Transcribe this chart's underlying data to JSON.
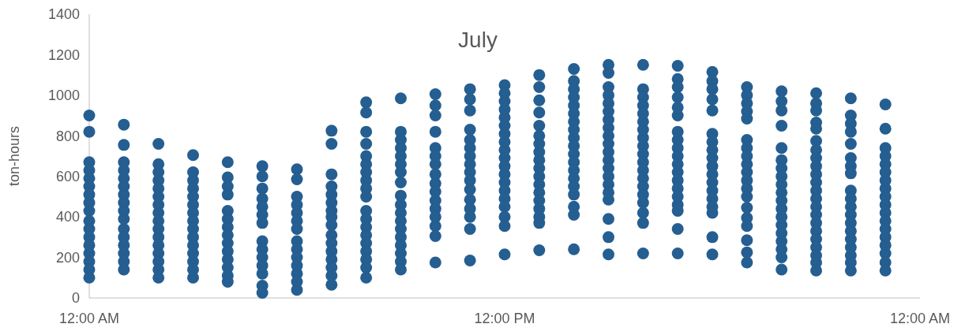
{
  "chart_data": {
    "type": "scatter",
    "title": "July",
    "ylabel": "ton-hours",
    "marker": "circle",
    "grid": false,
    "xlim": [
      0,
      24
    ],
    "xticks": [
      {
        "value": 0,
        "label": "12:00 AM"
      },
      {
        "value": 12,
        "label": "12:00 PM"
      },
      {
        "value": 24,
        "label": "12:00 AM"
      }
    ],
    "ylim": [
      0,
      1400
    ],
    "yticks": [
      0,
      200,
      400,
      600,
      800,
      1000,
      1200,
      1400
    ],
    "series": [
      {
        "color": "#255e91",
        "x": [
          0,
          0,
          0,
          0,
          0,
          0,
          0,
          0,
          0,
          0,
          0,
          0,
          0,
          0,
          0,
          0,
          0
        ],
        "values": [
          900,
          820,
          670,
          630,
          590,
          550,
          510,
          470,
          430,
          380,
          340,
          300,
          260,
          220,
          180,
          140,
          100
        ]
      },
      {
        "color": "#255e91",
        "x": [
          1,
          1,
          1,
          1,
          1,
          1,
          1,
          1,
          1,
          1,
          1,
          1,
          1,
          1,
          1,
          1
        ],
        "values": [
          855,
          755,
          670,
          630,
          590,
          550,
          510,
          470,
          430,
          390,
          340,
          300,
          260,
          220,
          180,
          140
        ]
      },
      {
        "color": "#255e91",
        "x": [
          2,
          2,
          2,
          2,
          2,
          2,
          2,
          2,
          2,
          2,
          2,
          2,
          2,
          2,
          2,
          2
        ],
        "values": [
          760,
          660,
          620,
          580,
          540,
          500,
          460,
          420,
          380,
          340,
          300,
          260,
          220,
          180,
          140,
          100
        ]
      },
      {
        "color": "#255e91",
        "x": [
          3,
          3,
          3,
          3,
          3,
          3,
          3,
          3,
          3,
          3,
          3,
          3,
          3,
          3,
          3
        ],
        "values": [
          705,
          620,
          580,
          540,
          500,
          460,
          420,
          380,
          340,
          300,
          260,
          220,
          180,
          140,
          100
        ]
      },
      {
        "color": "#255e91",
        "x": [
          4,
          4,
          4,
          4,
          4,
          4,
          4,
          4,
          4,
          4,
          4,
          4,
          4,
          4
        ],
        "values": [
          670,
          595,
          550,
          510,
          430,
          390,
          350,
          310,
          270,
          230,
          190,
          150,
          110,
          80
        ]
      },
      {
        "color": "#255e91",
        "x": [
          5,
          5,
          5,
          5,
          5,
          5,
          5,
          5,
          5,
          5,
          5,
          5,
          5,
          5
        ],
        "values": [
          650,
          600,
          540,
          490,
          450,
          410,
          370,
          280,
          240,
          200,
          160,
          120,
          60,
          25
        ]
      },
      {
        "color": "#255e91",
        "x": [
          6,
          6,
          6,
          6,
          6,
          6,
          6,
          6,
          6,
          6,
          6,
          6,
          6,
          6
        ],
        "values": [
          635,
          585,
          500,
          460,
          420,
          380,
          340,
          280,
          240,
          200,
          160,
          120,
          80,
          40
        ]
      },
      {
        "color": "#255e91",
        "x": [
          7,
          7,
          7,
          7,
          7,
          7,
          7,
          7,
          7,
          7,
          7,
          7,
          7,
          7,
          7,
          7
        ],
        "values": [
          825,
          760,
          610,
          550,
          510,
          470,
          430,
          400,
          360,
          310,
          270,
          230,
          190,
          150,
          110,
          65
        ]
      },
      {
        "color": "#255e91",
        "x": [
          8,
          8,
          8,
          8,
          8,
          8,
          8,
          8,
          8,
          8,
          8,
          8,
          8,
          8,
          8,
          8,
          8,
          8,
          8
        ],
        "values": [
          965,
          915,
          820,
          760,
          700,
          660,
          620,
          580,
          540,
          500,
          430,
          390,
          350,
          310,
          270,
          230,
          190,
          150,
          100
        ]
      },
      {
        "color": "#255e91",
        "x": [
          9,
          9,
          9,
          9,
          9,
          9,
          9,
          9,
          9,
          9,
          9,
          9,
          9,
          9,
          9,
          9,
          9,
          9
        ],
        "values": [
          985,
          820,
          780,
          740,
          700,
          660,
          620,
          570,
          505,
          460,
          420,
          380,
          340,
          300,
          260,
          220,
          180,
          140
        ]
      },
      {
        "color": "#255e91",
        "x": [
          10,
          10,
          10,
          10,
          10,
          10,
          10,
          10,
          10,
          10,
          10,
          10,
          10,
          10,
          10,
          10
        ],
        "values": [
          1005,
          950,
          900,
          820,
          740,
          700,
          660,
          610,
          565,
          525,
          480,
          440,
          400,
          355,
          305,
          175
        ]
      },
      {
        "color": "#255e91",
        "x": [
          11,
          11,
          11,
          11,
          11,
          11,
          11,
          11,
          11,
          11,
          11,
          11,
          11,
          11,
          11,
          11
        ],
        "values": [
          1030,
          980,
          925,
          830,
          780,
          740,
          700,
          660,
          620,
          580,
          535,
          485,
          440,
          400,
          340,
          185
        ]
      },
      {
        "color": "#255e91",
        "x": [
          12,
          12,
          12,
          12,
          12,
          12,
          12,
          12,
          12,
          12,
          12,
          12,
          12,
          12,
          12,
          12,
          12,
          12,
          12
        ],
        "values": [
          1050,
          1010,
          970,
          930,
          890,
          850,
          810,
          770,
          730,
          690,
          650,
          610,
          570,
          530,
          490,
          450,
          400,
          355,
          215
        ]
      },
      {
        "color": "#255e91",
        "x": [
          13,
          13,
          13,
          13,
          13,
          13,
          13,
          13,
          13,
          13,
          13,
          13,
          13,
          13,
          13,
          13,
          13,
          13
        ],
        "values": [
          1100,
          1040,
          975,
          915,
          850,
          800,
          760,
          720,
          680,
          640,
          600,
          560,
          520,
          480,
          440,
          400,
          370,
          235
        ]
      },
      {
        "color": "#255e91",
        "x": [
          14,
          14,
          14,
          14,
          14,
          14,
          14,
          14,
          14,
          14,
          14,
          14,
          14,
          14,
          14,
          14,
          14,
          14,
          14
        ],
        "values": [
          1130,
          1070,
          1030,
          990,
          950,
          910,
          870,
          830,
          790,
          750,
          710,
          670,
          630,
          590,
          550,
          510,
          450,
          410,
          240
        ]
      },
      {
        "color": "#255e91",
        "x": [
          15,
          15,
          15,
          15,
          15,
          15,
          15,
          15,
          15,
          15,
          15,
          15,
          15,
          15,
          15,
          15,
          15,
          15,
          15,
          15
        ],
        "values": [
          1150,
          1110,
          1040,
          1000,
          960,
          920,
          880,
          840,
          800,
          760,
          720,
          680,
          640,
          600,
          560,
          520,
          485,
          390,
          300,
          215
        ]
      },
      {
        "color": "#255e91",
        "x": [
          16,
          16,
          16,
          16,
          16,
          16,
          16,
          16,
          16,
          16,
          16,
          16,
          16,
          16,
          16,
          16,
          16,
          16,
          16
        ],
        "values": [
          1150,
          1030,
          990,
          950,
          910,
          870,
          830,
          790,
          750,
          710,
          670,
          630,
          590,
          550,
          510,
          470,
          420,
          370,
          220
        ]
      },
      {
        "color": "#255e91",
        "x": [
          17,
          17,
          17,
          17,
          17,
          17,
          17,
          17,
          17,
          17,
          17,
          17,
          17,
          17,
          17,
          17,
          17,
          17,
          17
        ],
        "values": [
          1145,
          1080,
          1040,
          990,
          940,
          900,
          820,
          780,
          740,
          700,
          660,
          620,
          580,
          540,
          500,
          460,
          430,
          340,
          220
        ]
      },
      {
        "color": "#255e91",
        "x": [
          18,
          18,
          18,
          18,
          18,
          18,
          18,
          18,
          18,
          18,
          18,
          18,
          18,
          18,
          18,
          18,
          18,
          18
        ],
        "values": [
          1115,
          1070,
          1030,
          980,
          925,
          810,
          770,
          730,
          690,
          650,
          610,
          570,
          530,
          490,
          450,
          420,
          300,
          215
        ]
      },
      {
        "color": "#255e91",
        "x": [
          19,
          19,
          19,
          19,
          19,
          19,
          19,
          19,
          19,
          19,
          19,
          19,
          19,
          19,
          19,
          19,
          19,
          19,
          19
        ],
        "values": [
          1040,
          1000,
          960,
          920,
          885,
          780,
          740,
          700,
          660,
          620,
          580,
          540,
          500,
          445,
          395,
          355,
          285,
          225,
          175
        ]
      },
      {
        "color": "#255e91",
        "x": [
          20,
          20,
          20,
          20,
          20,
          20,
          20,
          20,
          20,
          20,
          20,
          20,
          20,
          20,
          20,
          20,
          20,
          20,
          20
        ],
        "values": [
          1020,
          970,
          925,
          850,
          740,
          680,
          640,
          600,
          560,
          520,
          480,
          440,
          400,
          360,
          320,
          280,
          240,
          200,
          140
        ]
      },
      {
        "color": "#255e91",
        "x": [
          21,
          21,
          21,
          21,
          21,
          21,
          21,
          21,
          21,
          21,
          21,
          21,
          21,
          21,
          21,
          21,
          21,
          21,
          21,
          21,
          21,
          21
        ],
        "values": [
          1010,
          960,
          925,
          865,
          835,
          775,
          730,
          690,
          650,
          610,
          570,
          530,
          490,
          450,
          410,
          370,
          330,
          290,
          250,
          210,
          175,
          135
        ]
      },
      {
        "color": "#255e91",
        "x": [
          22,
          22,
          22,
          22,
          22,
          22,
          22,
          22,
          22,
          22,
          22,
          22,
          22,
          22,
          22,
          22,
          22,
          22,
          22
        ],
        "values": [
          985,
          900,
          860,
          820,
          760,
          690,
          650,
          615,
          530,
          490,
          450,
          410,
          370,
          330,
          290,
          250,
          210,
          175,
          135
        ]
      },
      {
        "color": "#255e91",
        "x": [
          23,
          23,
          23,
          23,
          23,
          23,
          23,
          23,
          23,
          23,
          23,
          23,
          23,
          23,
          23,
          23,
          23,
          23
        ],
        "values": [
          955,
          835,
          740,
          700,
          660,
          620,
          580,
          540,
          500,
          460,
          420,
          380,
          340,
          300,
          260,
          220,
          175,
          135
        ]
      }
    ]
  }
}
